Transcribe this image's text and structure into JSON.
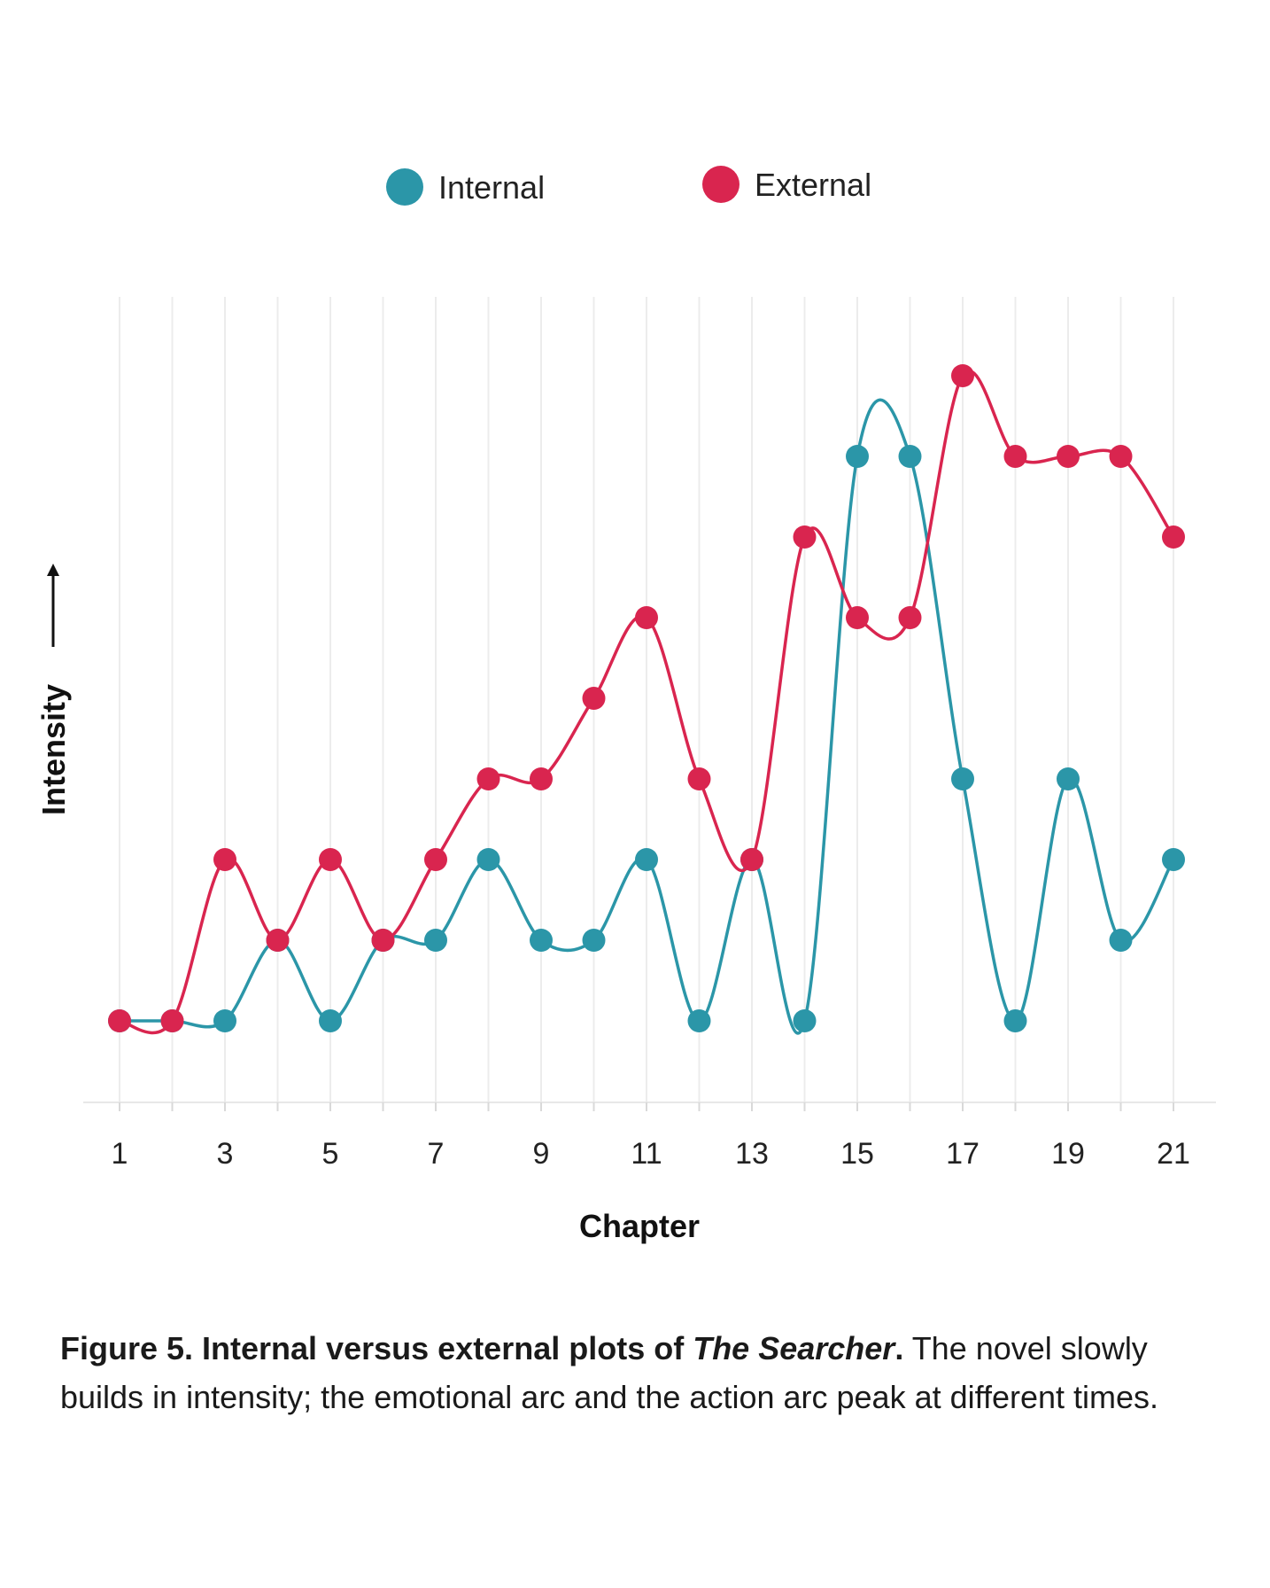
{
  "chart_data": {
    "type": "line",
    "xlabel": "Chapter",
    "ylabel": "Intensity",
    "x": [
      1,
      2,
      3,
      4,
      5,
      6,
      7,
      8,
      9,
      10,
      11,
      12,
      13,
      14,
      15,
      16,
      17,
      18,
      19,
      20,
      21
    ],
    "x_tick_labels": [
      "1",
      "3",
      "5",
      "7",
      "9",
      "11",
      "13",
      "15",
      "17",
      "19",
      "21"
    ],
    "ylim": [
      0,
      10
    ],
    "grid": "vertical",
    "legend_position": "top-center",
    "series": [
      {
        "name": "Internal",
        "color": "#2b96a8",
        "values": [
          1,
          1,
          1,
          2,
          1,
          2,
          2,
          3,
          2,
          2,
          3,
          1,
          3,
          1,
          8,
          8,
          4,
          1,
          4,
          2,
          3
        ]
      },
      {
        "name": "External",
        "color": "#d9254f",
        "values": [
          1,
          1,
          3,
          2,
          3,
          2,
          3,
          4,
          4,
          5,
          6,
          4,
          3,
          7,
          6,
          6,
          9,
          8,
          8,
          8,
          7
        ]
      }
    ]
  },
  "caption": {
    "bold_part": "Figure 5. Internal versus external plots of ",
    "italic_part": "The Searcher",
    "bold_end": ".",
    "rest": " The novel slowly builds in intensity; the emotional arc and the action arc peak at different times."
  }
}
